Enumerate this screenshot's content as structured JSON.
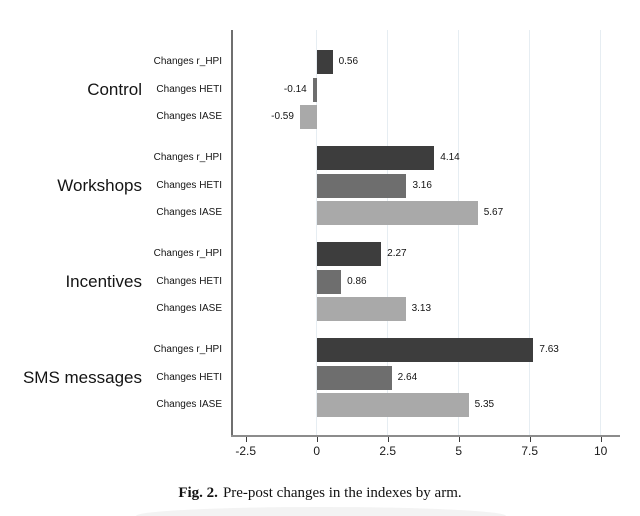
{
  "figure_caption": {
    "label": "Fig. 2.",
    "text": "Pre-post changes in the indexes by arm."
  },
  "chart_data": {
    "type": "bar",
    "orientation": "horizontal",
    "title": "",
    "xlabel": "",
    "ylabel": "",
    "xlim": [
      -3,
      10.6
    ],
    "x_tick_labels": [
      "-2.5",
      "0",
      "2.5",
      "5",
      "7.5",
      "10"
    ],
    "x_tick_values": [
      -2.5,
      0,
      2.5,
      5,
      7.5,
      10
    ],
    "gridline_values": [
      0,
      2.5,
      5,
      7.5,
      10
    ],
    "grid": true,
    "legend": "none",
    "value_labels_shown": true,
    "series_colors": {
      "Changes r_HPI": "#3d3d3d",
      "Changes HETI": "#6e6e6e",
      "Changes IASE": "#a9a9a9"
    },
    "groups": [
      {
        "group": "Control",
        "bars": [
          {
            "label": "Changes r_HPI",
            "value": 0.56,
            "value_label": "0.56"
          },
          {
            "label": "Changes HETI",
            "value": -0.14,
            "value_label": "-0.14"
          },
          {
            "label": "Changes IASE",
            "value": -0.59,
            "value_label": "-0.59"
          }
        ]
      },
      {
        "group": "Workshops",
        "bars": [
          {
            "label": "Changes r_HPI",
            "value": 4.14,
            "value_label": "4.14"
          },
          {
            "label": "Changes HETI",
            "value": 3.16,
            "value_label": "3.16"
          },
          {
            "label": "Changes IASE",
            "value": 5.67,
            "value_label": "5.67"
          }
        ]
      },
      {
        "group": "Incentives",
        "bars": [
          {
            "label": "Changes r_HPI",
            "value": 2.27,
            "value_label": "2.27"
          },
          {
            "label": "Changes HETI",
            "value": 0.86,
            "value_label": "0.86"
          },
          {
            "label": "Changes IASE",
            "value": 3.13,
            "value_label": "3.13"
          }
        ]
      },
      {
        "group": "SMS messages",
        "bars": [
          {
            "label": "Changes r_HPI",
            "value": 7.63,
            "value_label": "7.63"
          },
          {
            "label": "Changes HETI",
            "value": 2.64,
            "value_label": "2.64"
          },
          {
            "label": "Changes IASE",
            "value": 5.35,
            "value_label": "5.35"
          }
        ]
      }
    ],
    "colors": {
      "axis_y": "#6f6f6f",
      "axis_x": "#8c8c8c",
      "tick": "#3a3a3a",
      "gridline": "#e6edf2",
      "text": "#141414",
      "background": "#ffffff"
    }
  }
}
